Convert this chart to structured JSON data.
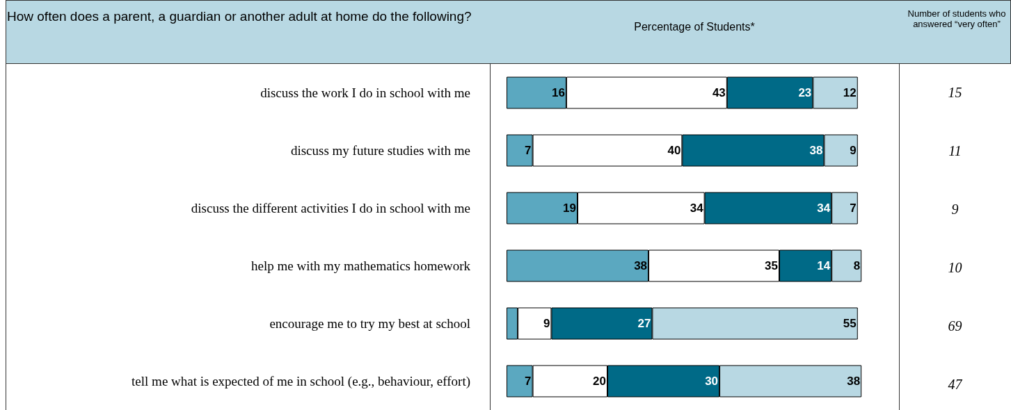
{
  "chart_data": {
    "type": "bar",
    "orientation": "horizontal",
    "stacked": true,
    "title": "How often does a parent, a guardian or another adult at home do the following?",
    "xlabel": "Percentage of Students*",
    "categories": [
      "discuss the work I do in school with me",
      "discuss my future studies with me",
      "discuss the different activities I do in school with me",
      "help me with my mathematics homework",
      "encourage me to try my best at school",
      "tell me what is expected of me in school (e.g., behaviour, effort)"
    ],
    "series": [
      {
        "color": "#5ba8c0",
        "values": [
          16,
          7,
          19,
          38,
          3,
          7
        ],
        "value_labels": [
          "16",
          "7",
          "19",
          "38",
          null,
          "7"
        ]
      },
      {
        "color": "#ffffff",
        "values": [
          43,
          40,
          34,
          35,
          9,
          20
        ],
        "value_labels": [
          "43",
          "40",
          "34",
          "35",
          "9",
          "20"
        ]
      },
      {
        "color": "#006a87",
        "values": [
          23,
          38,
          34,
          14,
          27,
          30
        ],
        "value_labels": [
          "23",
          "38",
          "34",
          "14",
          "27",
          "30"
        ]
      },
      {
        "color": "#b8d8e3",
        "values": [
          12,
          9,
          7,
          8,
          55,
          38
        ],
        "value_labels": [
          "12",
          "9",
          "7",
          "8",
          "55",
          "38"
        ]
      }
    ],
    "tick_labels": "y",
    "annotations": [
      "Number of students who answered “very often”",
      "15",
      "11",
      "9",
      "10",
      "69",
      "47"
    ]
  }
}
